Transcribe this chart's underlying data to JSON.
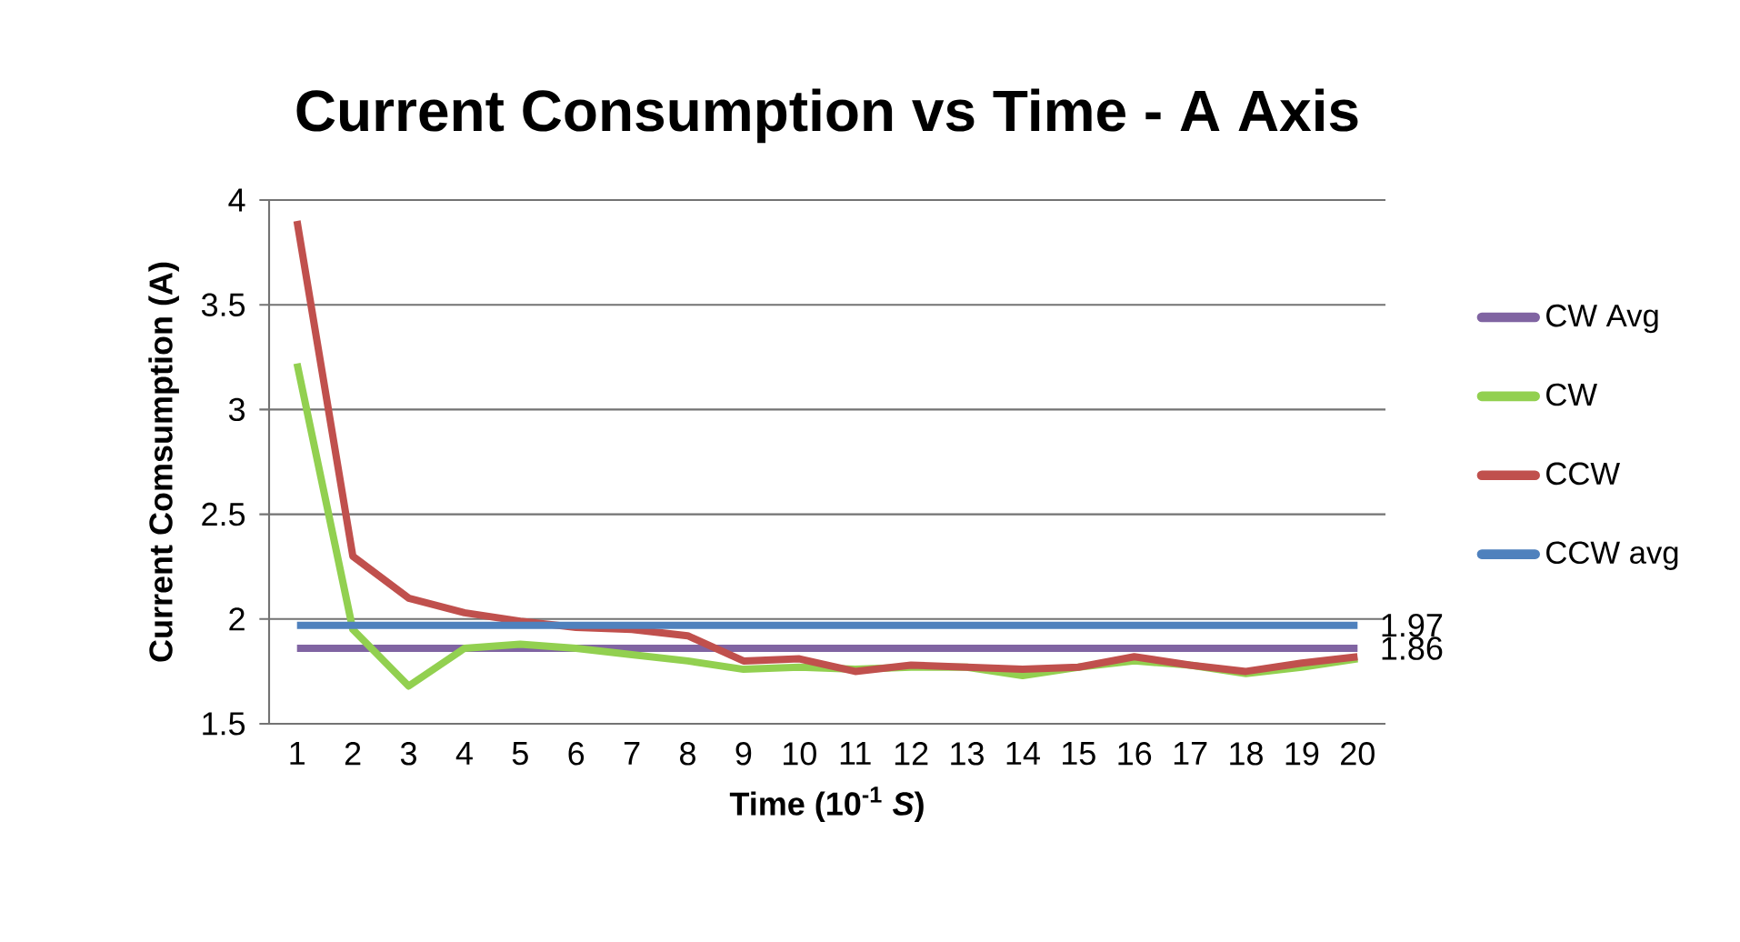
{
  "chart_data": {
    "type": "line",
    "title": "Current Consumption vs Time - A Axis",
    "xlabel": "Time (10$^{-1}$ *S*)",
    "ylabel": "Current Comsumption (A)",
    "categories": [
      "1",
      "2",
      "3",
      "4",
      "5",
      "6",
      "7",
      "8",
      "9",
      "10",
      "11",
      "12",
      "13",
      "14",
      "15",
      "16",
      "17",
      "18",
      "19",
      "20"
    ],
    "series": [
      {
        "name": "CW Avg",
        "color": "#8064a2",
        "values": [
          1.86,
          1.86,
          1.86,
          1.86,
          1.86,
          1.86,
          1.86,
          1.86,
          1.86,
          1.86,
          1.86,
          1.86,
          1.86,
          1.86,
          1.86,
          1.86,
          1.86,
          1.86,
          1.86,
          1.86
        ],
        "value_labels": [
          null,
          null,
          null,
          null,
          null,
          null,
          null,
          null,
          null,
          null,
          null,
          null,
          null,
          null,
          null,
          null,
          null,
          null,
          null,
          "1.86"
        ]
      },
      {
        "name": "CW",
        "color": "#92d050",
        "values": [
          3.22,
          1.95,
          1.68,
          1.86,
          1.88,
          1.86,
          1.83,
          1.8,
          1.76,
          1.77,
          1.76,
          1.77,
          1.77,
          1.73,
          1.77,
          1.8,
          1.78,
          1.74,
          1.77,
          1.81
        ]
      },
      {
        "name": "CCW",
        "color": "#c0504d",
        "values": [
          3.9,
          2.3,
          2.1,
          2.03,
          1.99,
          1.96,
          1.95,
          1.92,
          1.8,
          1.81,
          1.75,
          1.78,
          1.77,
          1.76,
          1.77,
          1.82,
          1.78,
          1.75,
          1.79,
          1.82
        ]
      },
      {
        "name": "CCW avg",
        "color": "#4f81bd",
        "values": [
          1.97,
          1.97,
          1.97,
          1.97,
          1.97,
          1.97,
          1.97,
          1.97,
          1.97,
          1.97,
          1.97,
          1.97,
          1.97,
          1.97,
          1.97,
          1.97,
          1.97,
          1.97,
          1.97,
          1.97
        ],
        "value_labels": [
          null,
          null,
          null,
          null,
          null,
          null,
          null,
          null,
          null,
          null,
          null,
          null,
          null,
          null,
          null,
          null,
          null,
          null,
          null,
          "1.97"
        ]
      }
    ],
    "ylim": [
      1.5,
      4
    ],
    "yticks": [
      1.5,
      2,
      2.5,
      3,
      3.5,
      4
    ],
    "grid": "y",
    "legend": "right",
    "marker": "none",
    "line_style": "solid"
  }
}
